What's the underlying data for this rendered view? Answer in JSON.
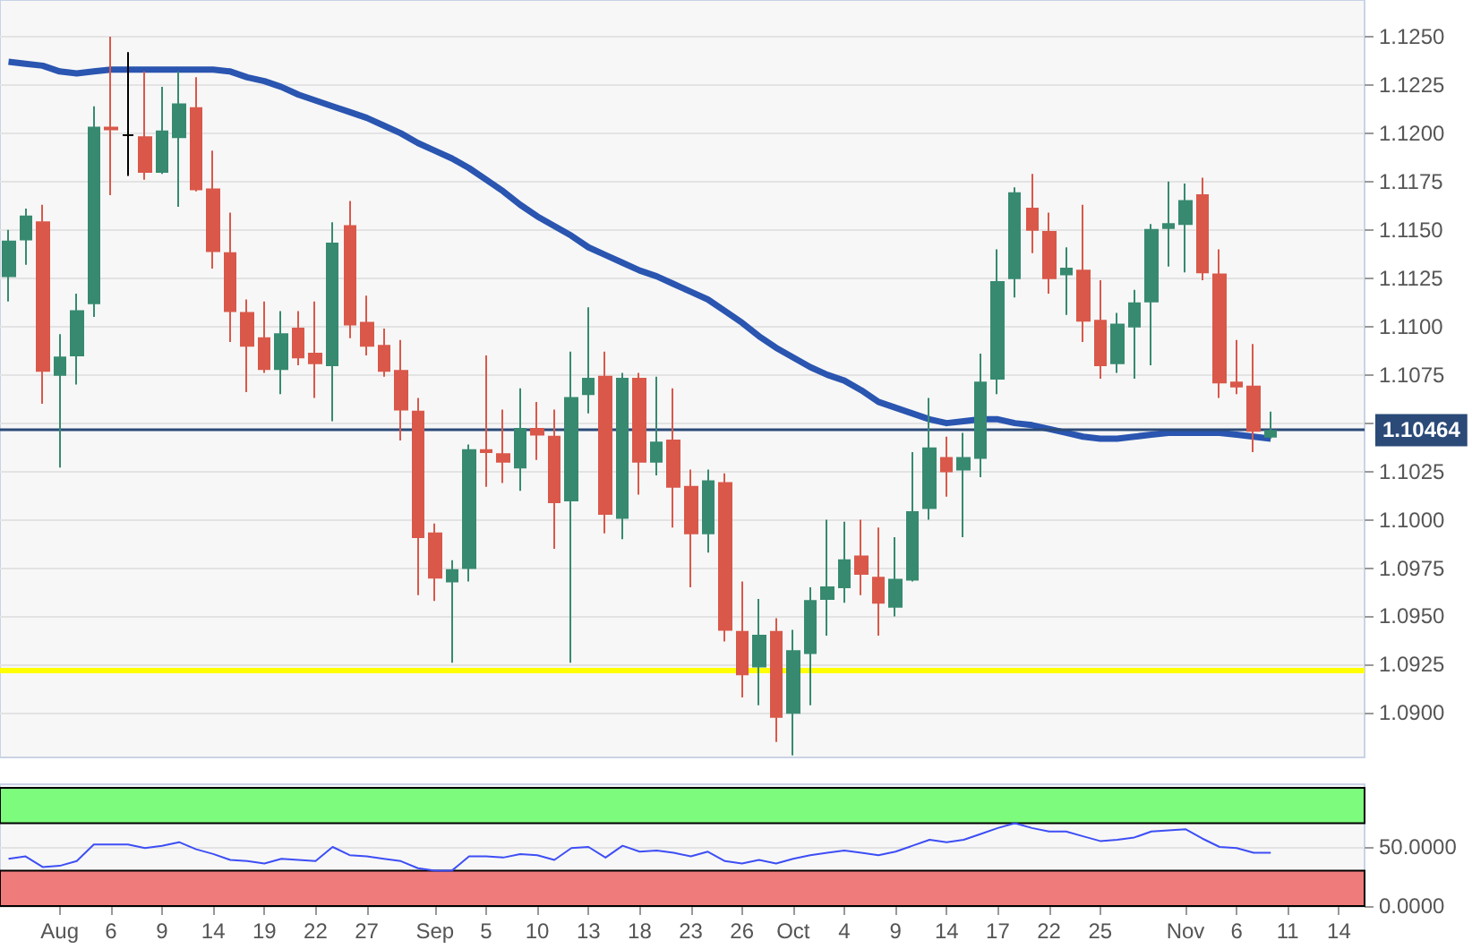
{
  "chart_data": [
    {
      "type": "candlestick",
      "categories": [
        null,
        null,
        null,
        null,
        null,
        null,
        null,
        null,
        null,
        null,
        null,
        null,
        null,
        null,
        null,
        null,
        null,
        null,
        null,
        null,
        null,
        null,
        null,
        null,
        null,
        null,
        null,
        null,
        null,
        null,
        null,
        null,
        null,
        null,
        null,
        null,
        null,
        null,
        null,
        null,
        null,
        null,
        null,
        null,
        null,
        null,
        null,
        null,
        null,
        null,
        null,
        null,
        null,
        null,
        null,
        null,
        null,
        null,
        null,
        null,
        null,
        null,
        null,
        null,
        null,
        null,
        null,
        null,
        null,
        null,
        null,
        null,
        null,
        null,
        null,
        null,
        null,
        null,
        null,
        null
      ],
      "ohlc": [
        [
          1.1126,
          1.115,
          1.1113,
          1.1144
        ],
        [
          1.1145,
          1.1161,
          1.1132,
          1.1157
        ],
        [
          1.1154,
          1.1163,
          1.106,
          1.1077
        ],
        [
          1.1075,
          1.1096,
          1.1027,
          1.1084
        ],
        [
          1.1085,
          1.1117,
          1.107,
          1.1108
        ],
        [
          1.1112,
          1.1214,
          1.1105,
          1.1203
        ],
        [
          1.1203,
          1.125,
          1.1168,
          1.1202
        ],
        [
          1.1199,
          1.1242,
          1.1178,
          1.1199
        ],
        [
          1.1198,
          1.1232,
          1.1176,
          1.118
        ],
        [
          1.118,
          1.1224,
          1.1179,
          1.1201
        ],
        [
          1.1198,
          1.1232,
          1.1162,
          1.1215
        ],
        [
          1.1213,
          1.1229,
          1.117,
          1.1171
        ],
        [
          1.1171,
          1.1191,
          1.113,
          1.1139
        ],
        [
          1.1138,
          1.1159,
          1.1092,
          1.1108
        ],
        [
          1.1107,
          1.1114,
          1.1066,
          1.109
        ],
        [
          1.1094,
          1.1113,
          1.1076,
          1.1078
        ],
        [
          1.1078,
          1.1108,
          1.1065,
          1.1096
        ],
        [
          1.1099,
          1.1108,
          1.108,
          1.1084
        ],
        [
          1.1086,
          1.1113,
          1.1063,
          1.1081
        ],
        [
          1.108,
          1.1154,
          1.1051,
          1.1143
        ],
        [
          1.1152,
          1.1165,
          1.1094,
          1.1101
        ],
        [
          1.1102,
          1.1116,
          1.1085,
          1.109
        ],
        [
          1.109,
          1.1099,
          1.1074,
          1.1077
        ],
        [
          1.1077,
          1.1093,
          1.1041,
          1.1057
        ],
        [
          1.1056,
          1.1063,
          1.0961,
          1.0991
        ],
        [
          1.0993,
          1.0998,
          1.0958,
          1.097
        ],
        [
          1.0968,
          1.0979,
          1.0926,
          1.0974
        ],
        [
          1.0975,
          1.1039,
          1.0968,
          1.1036
        ],
        [
          1.1036,
          1.1085,
          1.1017,
          1.1035
        ],
        [
          1.1034,
          1.1057,
          1.1019,
          1.103
        ],
        [
          1.1027,
          1.1068,
          1.1015,
          1.1047
        ],
        [
          1.1047,
          1.1061,
          1.1031,
          1.1044
        ],
        [
          1.1043,
          1.1057,
          1.0985,
          1.1009
        ],
        [
          1.101,
          1.1087,
          1.0926,
          1.1063
        ],
        [
          1.1065,
          1.111,
          1.1055,
          1.1073
        ],
        [
          1.1074,
          1.1087,
          1.0993,
          1.1003
        ],
        [
          1.1001,
          1.1076,
          1.099,
          1.1073
        ],
        [
          1.1073,
          1.1076,
          1.1013,
          1.103
        ],
        [
          1.103,
          1.1074,
          1.1023,
          1.104
        ],
        [
          1.1041,
          1.1068,
          1.0996,
          1.1017
        ],
        [
          1.1017,
          1.1026,
          1.0965,
          1.0993
        ],
        [
          1.0993,
          1.1026,
          1.0983,
          1.102
        ],
        [
          1.1019,
          1.1024,
          1.0937,
          1.0943
        ],
        [
          1.0942,
          1.0968,
          1.0908,
          1.092
        ],
        [
          1.0924,
          1.0959,
          1.0904,
          1.094
        ],
        [
          1.0942,
          1.0949,
          1.0885,
          1.0898
        ],
        [
          1.09,
          1.0943,
          1.0878,
          1.0932
        ],
        [
          1.0931,
          1.0965,
          1.0904,
          1.0958
        ],
        [
          1.0959,
          1.1,
          1.094,
          1.0965
        ],
        [
          1.0965,
          1.0999,
          1.0957,
          1.0979
        ],
        [
          1.0981,
          1.1,
          1.0961,
          1.0972
        ],
        [
          1.097,
          1.0996,
          1.094,
          1.0957
        ],
        [
          1.0955,
          1.0991,
          1.095,
          1.0969
        ],
        [
          1.0969,
          1.1035,
          1.0968,
          1.1004
        ],
        [
          1.1006,
          1.1063,
          1.1,
          1.1037
        ],
        [
          1.1032,
          1.1043,
          1.1012,
          1.1025
        ],
        [
          1.1026,
          1.1045,
          1.0991,
          1.1032
        ],
        [
          1.1032,
          1.1086,
          1.1022,
          1.1071
        ],
        [
          1.1073,
          1.114,
          1.1065,
          1.1123
        ],
        [
          1.1125,
          1.1172,
          1.1115,
          1.1169
        ],
        [
          1.1161,
          1.1179,
          1.1138,
          1.115
        ],
        [
          1.1149,
          1.1159,
          1.1117,
          1.1125
        ],
        [
          1.1127,
          1.1141,
          1.1106,
          1.113
        ],
        [
          1.1129,
          1.1163,
          1.1092,
          1.1103
        ],
        [
          1.1103,
          1.1124,
          1.1073,
          1.108
        ],
        [
          1.1081,
          1.1107,
          1.1076,
          1.1101
        ],
        [
          1.11,
          1.1119,
          1.1073,
          1.1112
        ],
        [
          1.1113,
          1.1153,
          1.108,
          1.115
        ],
        [
          1.1151,
          1.1175,
          1.1131,
          1.1153
        ],
        [
          1.1153,
          1.1174,
          1.1128,
          1.1165
        ],
        [
          1.1168,
          1.1177,
          1.1124,
          1.1128
        ],
        [
          1.1127,
          1.114,
          1.1063,
          1.1071
        ],
        [
          1.1071,
          1.1093,
          1.1065,
          1.1069
        ],
        [
          1.1069,
          1.1091,
          1.1035,
          1.1046
        ],
        [
          1.1043,
          1.1056,
          1.1042,
          1.1046
        ],
        null,
        null,
        null,
        null,
        null
      ],
      "colors": [
        "#378a70",
        "#378a70",
        "#d9584a",
        "#378a70",
        "#378a70",
        "#378a70",
        "#d9584a",
        "#000000",
        "#d9584a",
        "#378a70",
        "#378a70",
        "#d9584a",
        "#d9584a",
        "#d9584a",
        "#d9584a",
        "#d9584a",
        "#378a70",
        "#d9584a",
        "#d9584a",
        "#378a70",
        "#d9584a",
        "#d9584a",
        "#d9584a",
        "#d9584a",
        "#d9584a",
        "#d9584a",
        "#378a70",
        "#378a70",
        "#d9584a",
        "#d9584a",
        "#378a70",
        "#d9584a",
        "#d9584a",
        "#378a70",
        "#378a70",
        "#d9584a",
        "#378a70",
        "#d9584a",
        "#378a70",
        "#d9584a",
        "#d9584a",
        "#378a70",
        "#d9584a",
        "#d9584a",
        "#378a70",
        "#d9584a",
        "#378a70",
        "#378a70",
        "#378a70",
        "#378a70",
        "#d9584a",
        "#d9584a",
        "#378a70",
        "#378a70",
        "#378a70",
        "#d9584a",
        "#378a70",
        "#378a70",
        "#378a70",
        "#378a70",
        "#d9584a",
        "#d9584a",
        "#378a70",
        "#d9584a",
        "#d9584a",
        "#378a70",
        "#378a70",
        "#378a70",
        "#378a70",
        "#378a70",
        "#d9584a",
        "#d9584a",
        "#d9584a",
        "#d9584a",
        "#378a70",
        null,
        null,
        null,
        null,
        null
      ],
      "series": [
        {
          "type": "line",
          "color": "#2a55b0",
          "values": [
            1.1237,
            1.1236,
            1.1235,
            1.1232,
            1.1231,
            1.1232,
            1.1233,
            1.1233,
            1.1233,
            1.1233,
            1.1233,
            1.1233,
            1.1233,
            1.1232,
            1.1229,
            1.1227,
            1.1224,
            1.122,
            1.1217,
            1.1214,
            1.1211,
            1.1208,
            1.1204,
            1.12,
            1.1195,
            1.1191,
            1.1187,
            1.1182,
            1.1176,
            1.117,
            1.1163,
            1.1157,
            1.1152,
            1.1147,
            1.1141,
            1.1137,
            1.1133,
            1.1129,
            1.1126,
            1.1122,
            1.1118,
            1.1114,
            1.1108,
            1.1102,
            1.1095,
            1.1089,
            1.1084,
            1.1079,
            1.1075,
            1.1072,
            1.1067,
            1.1061,
            1.1058,
            1.1055,
            1.1052,
            1.105,
            1.1051,
            1.1052,
            1.1052,
            1.105,
            1.1049,
            1.1047,
            1.1045,
            1.1043,
            1.1042,
            1.1042,
            1.1043,
            1.1044,
            1.1045,
            1.1045,
            1.1045,
            1.1045,
            1.1044,
            1.1043,
            1.1042,
            null,
            null,
            null,
            null,
            null
          ]
        }
      ],
      "ylim": [
        1.0877,
        1.1269
      ],
      "yticks": [
        {
          "value": 1.09,
          "label": "1.0900"
        },
        {
          "value": 1.0925,
          "label": "1.0925"
        },
        {
          "value": 1.095,
          "label": "1.0950"
        },
        {
          "value": 1.0975,
          "label": "1.0975"
        },
        {
          "value": 1.1,
          "label": "1.1000"
        },
        {
          "value": 1.1025,
          "label": "1.1025"
        },
        {
          "value": 1.105,
          "label": null
        },
        {
          "value": 1.1075,
          "label": "1.1075"
        },
        {
          "value": 1.11,
          "label": "1.1100"
        },
        {
          "value": 1.1125,
          "label": "1.1125"
        },
        {
          "value": 1.115,
          "label": "1.1150"
        },
        {
          "value": 1.1175,
          "label": "1.1175"
        },
        {
          "value": 1.12,
          "label": "1.1200"
        },
        {
          "value": 1.1225,
          "label": "1.1225"
        },
        {
          "value": 1.125,
          "label": "1.1250"
        }
      ],
      "ref_lines": [
        {
          "axis": "y",
          "value": 1.10464,
          "label": "1.10464",
          "color": "#2b4a78"
        },
        {
          "axis": "y",
          "value": 1.0922,
          "color": "#ffff00"
        }
      ],
      "grid": "y",
      "tick_labels": "y"
    },
    {
      "type": "line",
      "categories": [
        null,
        null,
        null,
        "Aug",
        null,
        null,
        "6",
        null,
        null,
        "9",
        null,
        null,
        "14",
        null,
        null,
        "19",
        null,
        null,
        "22",
        null,
        null,
        "27",
        null,
        null,
        null,
        "Sep",
        null,
        null,
        "5",
        null,
        null,
        "10",
        null,
        null,
        "13",
        null,
        null,
        "18",
        null,
        null,
        "23",
        null,
        null,
        "26",
        null,
        null,
        "Oct",
        null,
        null,
        "4",
        null,
        null,
        "9",
        null,
        null,
        "14",
        null,
        null,
        "17",
        null,
        null,
        "22",
        null,
        null,
        "25",
        null,
        null,
        null,
        null,
        "Nov",
        null,
        null,
        "6",
        null,
        null,
        "11",
        null,
        null,
        "14",
        null
      ],
      "series": [
        {
          "color": "#3d4ef5",
          "values": [
            40,
            42,
            33,
            34,
            38,
            52,
            52,
            52,
            49,
            51,
            54,
            48,
            44,
            39,
            38,
            36,
            40,
            39,
            38,
            50,
            43,
            42,
            40,
            38,
            32,
            30,
            30,
            42,
            42,
            41,
            44,
            43,
            39,
            49,
            50,
            41,
            51,
            46,
            47,
            45,
            42,
            46,
            38,
            36,
            39,
            36,
            40,
            43,
            45,
            47,
            45,
            43,
            46,
            51,
            56,
            54,
            56,
            61,
            66,
            70,
            66,
            63,
            63,
            59,
            55,
            56,
            58,
            63,
            64,
            65,
            57,
            50,
            49,
            45,
            45,
            null,
            null,
            null,
            null,
            null
          ]
        }
      ],
      "ylim": [
        0,
        103
      ],
      "yticks": [
        {
          "value": 0,
          "label": "0.0000"
        },
        {
          "value": 50,
          "label": "50.0000"
        }
      ],
      "bands": [
        {
          "axis": "y",
          "from": 70,
          "to": 100,
          "color": "#7dfb7d"
        },
        {
          "axis": "y",
          "from": 0,
          "to": 30,
          "color": "#f07b7b"
        }
      ],
      "grid": "y"
    }
  ]
}
